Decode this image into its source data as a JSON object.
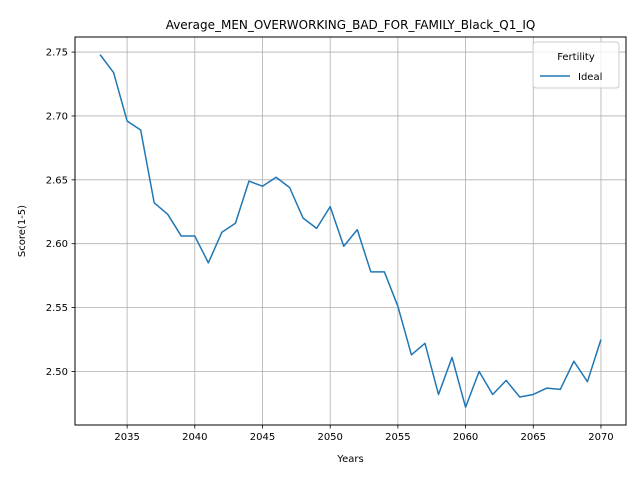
{
  "chart_data": {
    "type": "line",
    "title": "Average_MEN_OVERWORKING_BAD_FOR_FAMILY_Black_Q1_IQ",
    "xlabel": "Years",
    "ylabel": "Score(1-5)",
    "xlim": [
      2031.15,
      2071.85
    ],
    "ylim": [
      2.4581,
      2.7618
    ],
    "xticks": [
      2035,
      2040,
      2045,
      2050,
      2055,
      2060,
      2065,
      2070
    ],
    "yticks": [
      2.5,
      2.55,
      2.6,
      2.65,
      2.7,
      2.75
    ],
    "ytick_labels": [
      "2.50",
      "2.55",
      "2.60",
      "2.65",
      "2.70",
      "2.75"
    ],
    "grid": true,
    "legend": {
      "title": "Fertility",
      "placement": "top-right"
    },
    "series": [
      {
        "name": "Ideal",
        "color": "#1f77b4",
        "x": [
          2033,
          2034,
          2035,
          2036,
          2037,
          2038,
          2039,
          2040,
          2041,
          2042,
          2043,
          2044,
          2045,
          2046,
          2047,
          2048,
          2049,
          2050,
          2051,
          2052,
          2053,
          2054,
          2055,
          2056,
          2057,
          2058,
          2059,
          2060,
          2061,
          2062,
          2063,
          2064,
          2065,
          2066,
          2067,
          2068,
          2069,
          2070
        ],
        "values": [
          2.748,
          2.734,
          2.696,
          2.689,
          2.632,
          2.623,
          2.606,
          2.606,
          2.585,
          2.609,
          2.616,
          2.649,
          2.645,
          2.652,
          2.644,
          2.62,
          2.612,
          2.629,
          2.598,
          2.611,
          2.578,
          2.578,
          2.551,
          2.513,
          2.522,
          2.482,
          2.511,
          2.472,
          2.5,
          2.482,
          2.493,
          2.48,
          2.482,
          2.487,
          2.486,
          2.508,
          2.492,
          2.525
        ]
      }
    ]
  }
}
